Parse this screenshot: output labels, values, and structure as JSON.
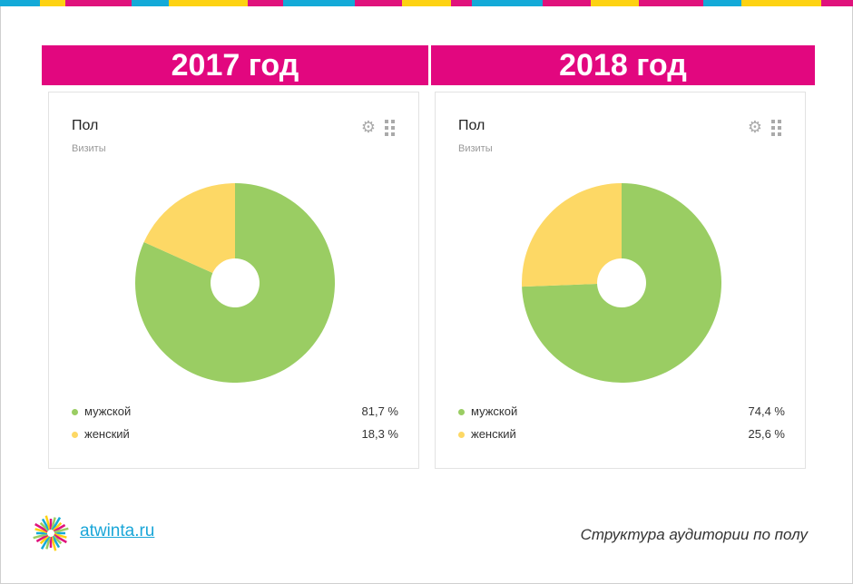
{
  "stripe_colors": [
    "#14aad8",
    "#fdd212",
    "#e0127c",
    "#14aad8",
    "#fdd212",
    "#e0127c",
    "#14aad8",
    "#e0127c",
    "#fdd212",
    "#e0127c",
    "#14aad8",
    "#e0127c",
    "#fdd212",
    "#e0127c",
    "#14aad8",
    "#fdd212",
    "#e0127c"
  ],
  "chart_data": [
    {
      "type": "pie",
      "banner": "2017 год",
      "title": "Пол",
      "subtitle": "Визиты",
      "categories": [
        "мужской",
        "женский"
      ],
      "values": [
        81.7,
        18.3
      ],
      "labels": [
        "81,7 %",
        "18,3 %"
      ],
      "colors": [
        "#9acd63",
        "#fdd865"
      ]
    },
    {
      "type": "pie",
      "banner": "2018 год",
      "title": "Пол",
      "subtitle": "Визиты",
      "categories": [
        "мужской",
        "женский"
      ],
      "values": [
        74.4,
        25.6
      ],
      "labels": [
        "74,4 %",
        "25,6 %"
      ],
      "colors": [
        "#9acd63",
        "#fdd865"
      ]
    }
  ],
  "footer": {
    "site": "atwinta.ru",
    "caption": "Структура аудитории по полу"
  }
}
